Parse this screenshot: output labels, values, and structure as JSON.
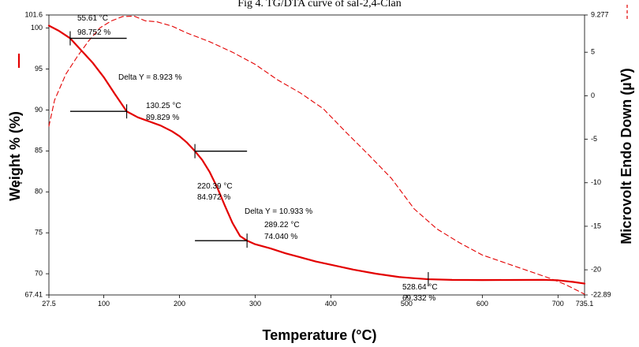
{
  "chart_data": {
    "type": "line",
    "title": "Fig 4. TG/DTA curve of sal-2,4-Clan",
    "xlabel": "Temperature (°C)",
    "ylabel_left": "Weight % (%)",
    "ylabel_right": "Microvolt Endo Down (µV)",
    "xlim": [
      27.5,
      735.1
    ],
    "ylim_left": [
      67.41,
      101.6
    ],
    "ylim_right": [
      -22.89,
      9.277
    ],
    "grid": false,
    "x_ticks": [
      "27.5",
      "100",
      "200",
      "300",
      "400",
      "500",
      "600",
      "700",
      "735.1"
    ],
    "y_left_ticks": [
      "67.41",
      "70",
      "75",
      "80",
      "85",
      "90",
      "95",
      "100",
      "101.6"
    ],
    "y_right_ticks": [
      "-22.89",
      "-20",
      "-15",
      "-10",
      "-5",
      "0",
      "5",
      "9.277"
    ],
    "colors": {
      "tg": "#e30000",
      "dta": "#e30000",
      "marker": "#000000"
    },
    "series": [
      {
        "name": "Weight %",
        "axis": "left",
        "style": "solid",
        "x": [
          27.5,
          40,
          55.61,
          70,
          85,
          100,
          115,
          130.25,
          145,
          160,
          175,
          190,
          200,
          210,
          220.39,
          230,
          240,
          250,
          260,
          270,
          280,
          289.22,
          300,
          320,
          340,
          360,
          380,
          400,
          430,
          460,
          490,
          510,
          528.64,
          560,
          600,
          640,
          680,
          700,
          720,
          735.1
        ],
        "y": [
          100.3,
          99.7,
          98.752,
          97.3,
          95.8,
          94.0,
          91.9,
          89.829,
          89.1,
          88.6,
          88.1,
          87.4,
          86.8,
          86.0,
          84.972,
          83.9,
          82.4,
          80.5,
          78.3,
          76.2,
          74.6,
          74.04,
          73.6,
          73.1,
          72.5,
          72.0,
          71.5,
          71.1,
          70.5,
          70.0,
          69.6,
          69.45,
          69.332,
          69.25,
          69.23,
          69.24,
          69.26,
          69.2,
          69.0,
          68.8
        ]
      },
      {
        "name": "Microvolt",
        "axis": "right",
        "style": "dashed",
        "x": [
          27.5,
          35,
          50,
          65,
          80,
          95,
          110,
          125,
          140,
          155,
          170,
          190,
          210,
          240,
          270,
          300,
          330,
          360,
          390,
          420,
          450,
          480,
          510,
          540,
          570,
          600,
          630,
          660,
          690,
          710,
          735.1
        ],
        "y": [
          -3.5,
          -0.5,
          2.5,
          4.5,
          6.3,
          7.8,
          8.6,
          9.1,
          9.15,
          8.6,
          8.5,
          8.0,
          7.2,
          6.2,
          5.0,
          3.6,
          1.8,
          0.3,
          -1.5,
          -4.2,
          -6.8,
          -9.5,
          -13.0,
          -15.3,
          -16.9,
          -18.3,
          -19.2,
          -20.1,
          -21.0,
          -21.7,
          -22.8
        ]
      }
    ],
    "annotations": {
      "point_labels": [
        {
          "temp": "55.61 °C",
          "pct": "98.752 %"
        },
        {
          "temp": "130.25 °C",
          "pct": "89.829 %"
        },
        {
          "temp": "220.39 °C",
          "pct": "84.972 %"
        },
        {
          "temp": "289.22 °C",
          "pct": "74.040 %"
        },
        {
          "temp": "528.64 °C",
          "pct": "69.332 %"
        }
      ],
      "deltas": [
        {
          "text": "Delta Y = 8.923 %"
        },
        {
          "text": "Delta Y = 10.933 %"
        }
      ],
      "step_markers": [
        {
          "x_from": 55.61,
          "x_to": 130.25,
          "y": 98.752,
          "tick_x": 55.61
        },
        {
          "x_from": 55.61,
          "x_to": 130.25,
          "y": 89.829,
          "tick_x": 130.25
        },
        {
          "x_from": 220.39,
          "x_to": 289.22,
          "y": 84.972,
          "tick_x": 220.39
        },
        {
          "x_from": 220.39,
          "x_to": 289.22,
          "y": 74.04,
          "tick_x": 289.22
        },
        {
          "x_from": 528.64,
          "x_to": 528.64,
          "y": 69.332,
          "tick_x": 528.64
        }
      ]
    }
  }
}
